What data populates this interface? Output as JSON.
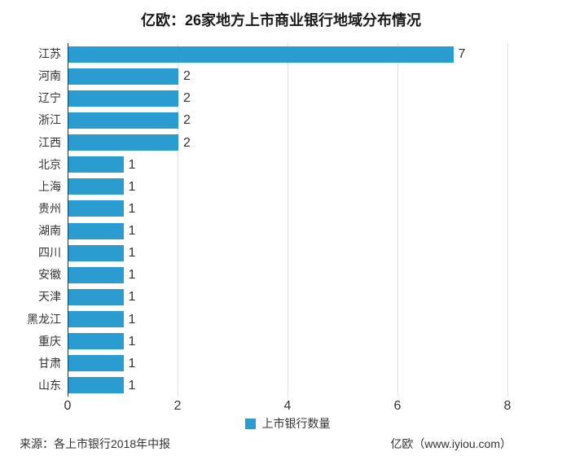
{
  "title": "亿欧：26家地方上市商业银行地域分布情况",
  "chart_data": {
    "type": "bar",
    "orientation": "horizontal",
    "title": "亿欧：26家地方上市商业银行地域分布情况",
    "categories": [
      "江苏",
      "河南",
      "辽宁",
      "浙江",
      "江西",
      "北京",
      "上海",
      "贵州",
      "湖南",
      "四川",
      "安徽",
      "天津",
      "黑龙江",
      "重庆",
      "甘肃",
      "山东"
    ],
    "values": [
      7,
      2,
      2,
      2,
      2,
      1,
      1,
      1,
      1,
      1,
      1,
      1,
      1,
      1,
      1,
      1
    ],
    "value_labels": [
      "7",
      "2",
      "2",
      "2",
      "2",
      "1",
      "1",
      "1",
      "1",
      "1",
      "1",
      "1",
      "1",
      "1",
      "1",
      "1"
    ],
    "xlim": [
      0,
      8
    ],
    "xticks": [
      0,
      2,
      4,
      6,
      8
    ],
    "xlabel": "",
    "ylabel": "",
    "grid": true,
    "legend_position": "bottom-center",
    "legend": [
      {
        "label": "上市银行数量",
        "color": "#2B9CD0"
      }
    ],
    "bar_color": "#2B9CD0"
  },
  "colors": {
    "bar": "#2B9CD0",
    "gridline": "#e2e2e2",
    "axis": "#333333",
    "text": "#333333",
    "title": "#1a1a1a",
    "background": "#ffffff"
  },
  "footer": {
    "source": "来源：各上市银行2018年中报",
    "brand": "亿欧（www.iyiou.com）"
  }
}
